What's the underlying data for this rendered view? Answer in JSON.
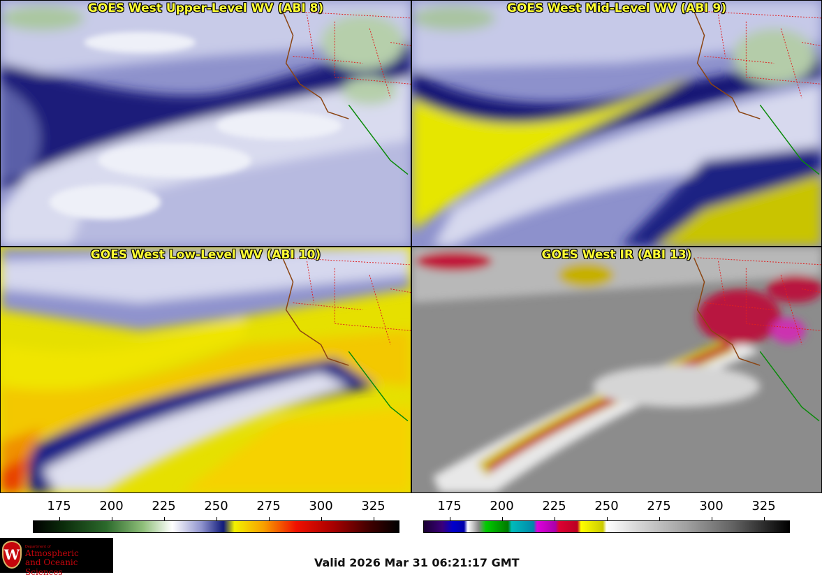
{
  "panels": [
    {
      "title": "GOES West Upper-Level WV (ABI 8)"
    },
    {
      "title": "GOES West Mid-Level WV (ABI 9)"
    },
    {
      "title": "GOES West Low-Level WV (ABI 10)"
    },
    {
      "title": "GOES West IR (ABI 13)"
    }
  ],
  "colorbars": {
    "wv": {
      "ticks": [
        "175",
        "200",
        "225",
        "250",
        "275",
        "300",
        "325"
      ]
    },
    "ir": {
      "ticks": [
        "175",
        "200",
        "225",
        "250",
        "275",
        "300",
        "325"
      ]
    }
  },
  "logo": {
    "dept": "Department of",
    "line1": "Atmospheric",
    "line2": "and Oceanic Sciences",
    "seal": "W"
  },
  "valid_time": "Valid 2026 Mar 31 06:21:17 GMT"
}
